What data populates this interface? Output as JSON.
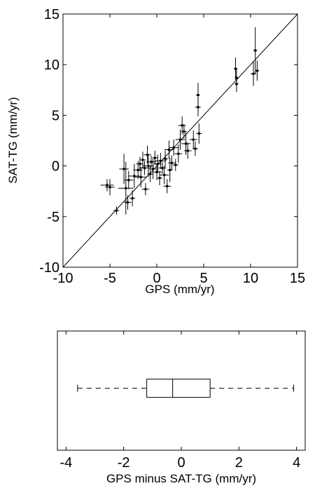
{
  "chart_data": [
    {
      "type": "scatter",
      "xlabel": "GPS (mm/yr)",
      "ylabel": "SAT-TG (mm/yr)",
      "xlim": [
        -10,
        15
      ],
      "ylim": [
        -10,
        15
      ],
      "xticks": [
        "-10",
        "-5",
        "0",
        "5",
        "10",
        "15"
      ],
      "yticks": [
        "-10",
        "-5",
        "0",
        "5",
        "10",
        "15"
      ],
      "reference_line": "y = x",
      "error_bars": "horizontal and vertical on each point",
      "color": "#000000",
      "points": [
        {
          "x": -5.3,
          "y": -1.9,
          "xerr": 0.7,
          "yerr": 0.6
        },
        {
          "x": -5.0,
          "y": -2.1,
          "xerr": 0.5,
          "yerr": 0.8
        },
        {
          "x": -4.3,
          "y": -4.4,
          "xerr": 0.3,
          "yerr": 0.4
        },
        {
          "x": -3.5,
          "y": -0.3,
          "xerr": 0.5,
          "yerr": 1.5
        },
        {
          "x": -3.3,
          "y": -2.2,
          "xerr": 0.8,
          "yerr": 2.6
        },
        {
          "x": -3.1,
          "y": -3.6,
          "xerr": 0.4,
          "yerr": 0.7
        },
        {
          "x": -3.0,
          "y": -1.4,
          "xerr": 0.5,
          "yerr": 0.9
        },
        {
          "x": -2.6,
          "y": -3.2,
          "xerr": 0.3,
          "yerr": 0.8
        },
        {
          "x": -2.4,
          "y": -1.0,
          "xerr": 0.6,
          "yerr": 1.2
        },
        {
          "x": -2.0,
          "y": -0.4,
          "xerr": 0.5,
          "yerr": 0.9
        },
        {
          "x": -1.8,
          "y": 0.2,
          "xerr": 0.4,
          "yerr": 0.7
        },
        {
          "x": -1.7,
          "y": -1.1,
          "xerr": 0.6,
          "yerr": 1.0
        },
        {
          "x": -1.5,
          "y": 0.6,
          "xerr": 0.3,
          "yerr": 0.8
        },
        {
          "x": -1.3,
          "y": -0.2,
          "xerr": 0.5,
          "yerr": 0.7
        },
        {
          "x": -1.2,
          "y": -2.3,
          "xerr": 0.4,
          "yerr": 0.6
        },
        {
          "x": -1.0,
          "y": 1.1,
          "xerr": 0.4,
          "yerr": 0.9
        },
        {
          "x": -0.9,
          "y": 0.0,
          "xerr": 0.6,
          "yerr": 1.1
        },
        {
          "x": -0.7,
          "y": -0.8,
          "xerr": 0.3,
          "yerr": 0.8
        },
        {
          "x": -0.6,
          "y": 0.4,
          "xerr": 0.5,
          "yerr": 0.6
        },
        {
          "x": -0.4,
          "y": -0.3,
          "xerr": 0.4,
          "yerr": 1.0
        },
        {
          "x": -0.2,
          "y": 0.8,
          "xerr": 0.3,
          "yerr": 0.7
        },
        {
          "x": 0.0,
          "y": -0.6,
          "xerr": 0.5,
          "yerr": 0.8
        },
        {
          "x": 0.1,
          "y": 0.2,
          "xerr": 0.4,
          "yerr": 0.9
        },
        {
          "x": 0.3,
          "y": -1.2,
          "xerr": 0.3,
          "yerr": 0.7
        },
        {
          "x": 0.4,
          "y": 0.5,
          "xerr": 0.6,
          "yerr": 0.8
        },
        {
          "x": 0.6,
          "y": -0.2,
          "xerr": 0.4,
          "yerr": 0.6
        },
        {
          "x": 0.8,
          "y": -0.9,
          "xerr": 0.5,
          "yerr": 0.9
        },
        {
          "x": 0.9,
          "y": 0.7,
          "xerr": 0.3,
          "yerr": 0.8
        },
        {
          "x": 1.1,
          "y": -2.0,
          "xerr": 0.4,
          "yerr": 0.7
        },
        {
          "x": 1.3,
          "y": 1.6,
          "xerr": 0.5,
          "yerr": 0.9
        },
        {
          "x": 1.4,
          "y": -0.4,
          "xerr": 0.3,
          "yerr": 1.2
        },
        {
          "x": 1.6,
          "y": 0.3,
          "xerr": 0.4,
          "yerr": 0.7
        },
        {
          "x": 1.8,
          "y": 1.8,
          "xerr": 0.5,
          "yerr": 0.8
        },
        {
          "x": 2.0,
          "y": 0.1,
          "xerr": 0.3,
          "yerr": 0.6
        },
        {
          "x": 2.3,
          "y": 1.2,
          "xerr": 0.4,
          "yerr": 0.9
        },
        {
          "x": 2.5,
          "y": 2.6,
          "xerr": 0.5,
          "yerr": 1.0
        },
        {
          "x": 2.7,
          "y": 4.0,
          "xerr": 0.4,
          "yerr": 0.9
        },
        {
          "x": 2.9,
          "y": 3.4,
          "xerr": 0.3,
          "yerr": 0.7
        },
        {
          "x": 3.1,
          "y": 2.2,
          "xerr": 0.5,
          "yerr": 1.1
        },
        {
          "x": 3.3,
          "y": 1.5,
          "xerr": 0.4,
          "yerr": 0.8
        },
        {
          "x": 3.9,
          "y": 2.6,
          "xerr": 0.4,
          "yerr": 0.9
        },
        {
          "x": 4.1,
          "y": 1.7,
          "xerr": 0.3,
          "yerr": 0.7
        },
        {
          "x": 4.4,
          "y": 7.0,
          "xerr": 0.2,
          "yerr": 1.2
        },
        {
          "x": 4.4,
          "y": 5.8,
          "xerr": 0.3,
          "yerr": 0.9
        },
        {
          "x": 4.5,
          "y": 3.2,
          "xerr": 0.3,
          "yerr": 1.0
        },
        {
          "x": 8.4,
          "y": 9.6,
          "xerr": 0.2,
          "yerr": 1.1
        },
        {
          "x": 8.5,
          "y": 8.1,
          "xerr": 0.2,
          "yerr": 0.8
        },
        {
          "x": 8.5,
          "y": 8.7,
          "xerr": 0.2,
          "yerr": 0.9
        },
        {
          "x": 10.3,
          "y": 9.1,
          "xerr": 0.3,
          "yerr": 1.2
        },
        {
          "x": 10.5,
          "y": 11.4,
          "xerr": 0.2,
          "yerr": 2.3
        },
        {
          "x": 10.7,
          "y": 9.4,
          "xerr": 0.2,
          "yerr": 1.0
        }
      ]
    },
    {
      "type": "box",
      "xlabel": "GPS minus SAT-TG (mm/yr)",
      "xlim": [
        -4.3,
        4.3
      ],
      "xticks": [
        "-4",
        "-2",
        "0",
        "2",
        "4"
      ],
      "whisker_low": -3.6,
      "q1": -1.2,
      "median": -0.3,
      "q3": 1.0,
      "whisker_high": 3.9
    }
  ]
}
